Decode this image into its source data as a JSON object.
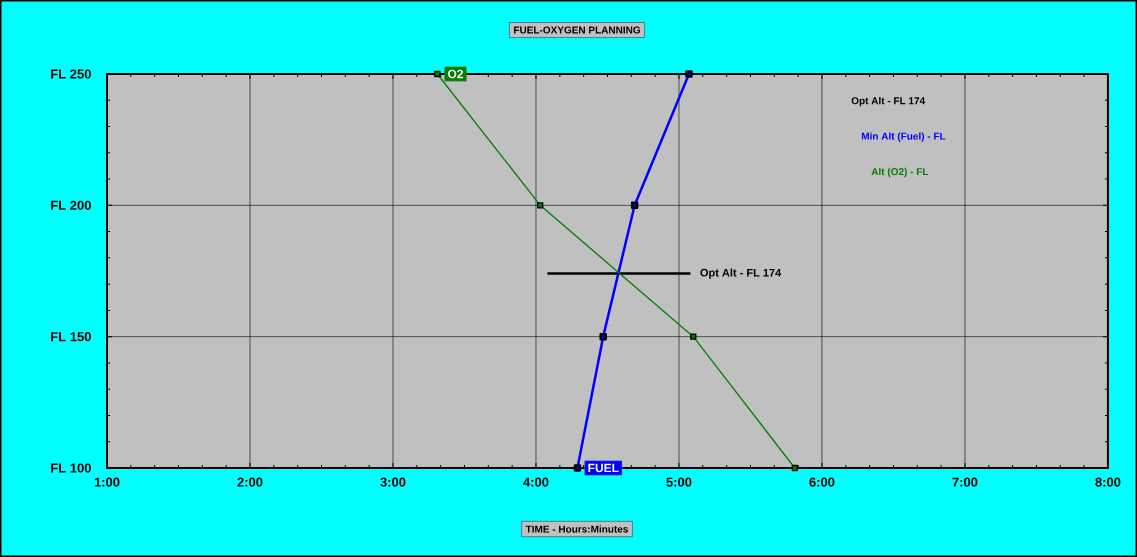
{
  "chart_data": {
    "type": "line",
    "title": "FUEL-OXYGEN PLANNING",
    "xlabel": "TIME - Hours:Minutes",
    "xlim": [
      1,
      8
    ],
    "ylim": [
      100,
      250
    ],
    "xticks": [
      {
        "value": 1,
        "label": "1:00"
      },
      {
        "value": 2,
        "label": "2:00"
      },
      {
        "value": 3,
        "label": "3:00"
      },
      {
        "value": 4,
        "label": "4:00"
      },
      {
        "value": 5,
        "label": "5:00"
      },
      {
        "value": 6,
        "label": "6:00"
      },
      {
        "value": 7,
        "label": "7:00"
      },
      {
        "value": 8,
        "label": "8:00"
      }
    ],
    "ylabel": "FL",
    "yticks": [
      100,
      150,
      200,
      250
    ],
    "grid": true,
    "legend": "top right",
    "marker": "square",
    "line_style": "solid",
    "series": [
      {
        "color": "#000000",
        "x": [
          4.08,
          5.08
        ],
        "values": [
          174,
          174
        ],
        "marker": "none"
      },
      {
        "name": "Min Alt (Fuel) - FL",
        "color": "#0000ff",
        "x": [
          4.29,
          4.47,
          4.69,
          5.07
        ],
        "values": [
          100,
          150,
          200,
          250
        ]
      },
      {
        "name": "Alt (O2) - FL",
        "color": "#008000",
        "x": [
          3.31,
          4.03,
          5.1,
          5.81
        ],
        "values": [
          250,
          200,
          150,
          100
        ]
      }
    ],
    "annotations": [
      "Opt Alt - FL 174",
      {
        "text": "O2",
        "x": 3.31,
        "y": 250
      },
      {
        "text": "FUEL",
        "x": 4.29,
        "y": 100
      },
      {
        "text": "Opt Alt - FL 174",
        "x": 5.08,
        "y": 174
      }
    ]
  }
}
